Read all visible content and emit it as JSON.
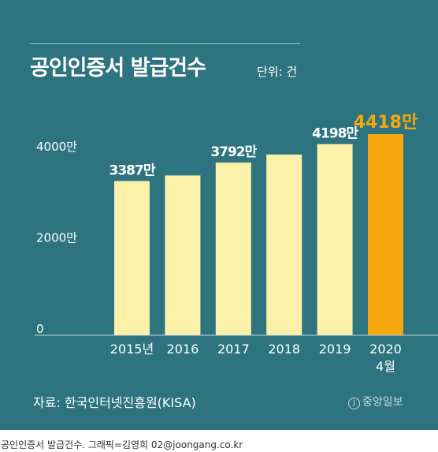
{
  "title": "공인인증서 발급건수",
  "unit_label": "단위: 건",
  "source": "자료: 한국인터넷진흥원(KISA)",
  "logo_text": "중앙일보",
  "logo_mark": "J",
  "caption": "공인인증서 발급건수. 그래픽=김영희 02@joongang.co.kr",
  "colors": {
    "background": "#2e7480",
    "bar": "#fbf1a8",
    "highlight": "#f5a70d",
    "text": "#ffffff",
    "gridline": "#bcd3d6"
  },
  "chart_data": {
    "type": "bar",
    "categories": [
      "2015년",
      "2016",
      "2017",
      "2018",
      "2019",
      "2020\n4월"
    ],
    "values": [
      33870000,
      35100000,
      37920000,
      39700000,
      41980000,
      44180000
    ],
    "data_labels": [
      "3387만",
      "",
      "3792만",
      "",
      "4198만",
      "4418만"
    ],
    "highlight_index": 5,
    "yticks": [
      {
        "value": 0,
        "label": "0"
      },
      {
        "value": 20000000,
        "label": "2000만"
      },
      {
        "value": 40000000,
        "label": "4000만"
      }
    ],
    "ylim": [
      0,
      44180000
    ],
    "grid": false,
    "legend": "none"
  }
}
